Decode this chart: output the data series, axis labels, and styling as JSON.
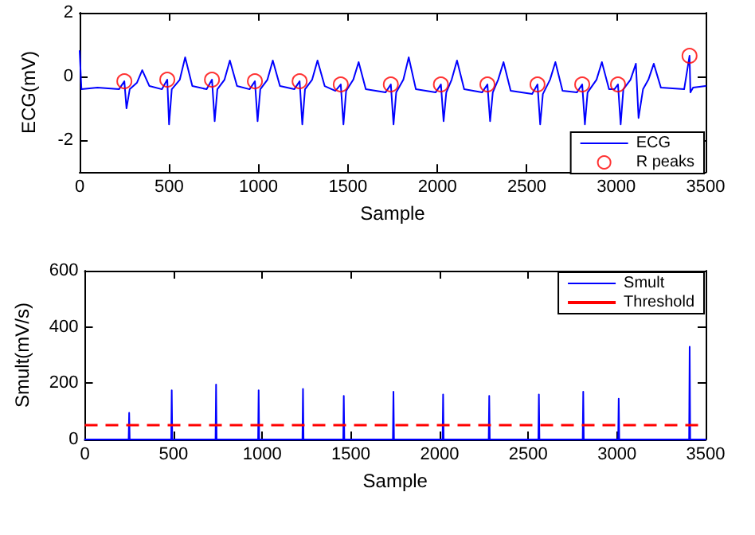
{
  "chart_data": [
    {
      "type": "line",
      "xlabel": "Sample",
      "ylabel": "ECG(mV)",
      "xlim": [
        0,
        3500
      ],
      "xticks": [
        0,
        500,
        1000,
        1500,
        2000,
        2500,
        3000,
        3500
      ],
      "ylim": [
        -3,
        2
      ],
      "yticks": [
        -2,
        0,
        2
      ],
      "grid": false,
      "legend": "bottom right",
      "series": [
        {
          "name": "ECG",
          "color": "#0000ff",
          "marker": "none",
          "line_style": "solid",
          "x": [
            0,
            10,
            100,
            220,
            250,
            262,
            280,
            320,
            350,
            390,
            460,
            490,
            500,
            515,
            560,
            590,
            630,
            710,
            740,
            755,
            770,
            810,
            840,
            880,
            950,
            980,
            995,
            1010,
            1050,
            1080,
            1120,
            1200,
            1230,
            1245,
            1260,
            1300,
            1330,
            1370,
            1430,
            1460,
            1475,
            1490,
            1530,
            1560,
            1600,
            1710,
            1740,
            1755,
            1770,
            1810,
            1840,
            1880,
            1990,
            2020,
            2035,
            2050,
            2080,
            2110,
            2150,
            2250,
            2280,
            2295,
            2310,
            2340,
            2370,
            2410,
            2530,
            2560,
            2575,
            2590,
            2630,
            2660,
            2700,
            2780,
            2810,
            2825,
            2840,
            2890,
            2920,
            2960,
            2990,
            3010,
            3025,
            3040,
            3080,
            3110,
            3125,
            3150,
            3180,
            3210,
            3250,
            3380,
            3410,
            3415,
            3430,
            3500
          ],
          "values": [
            0.8,
            -0.4,
            -0.35,
            -0.4,
            -0.15,
            -1.0,
            -0.4,
            -0.2,
            0.2,
            -0.3,
            -0.4,
            -0.1,
            -1.5,
            -0.4,
            -0.1,
            0.6,
            -0.3,
            -0.4,
            -0.1,
            -1.4,
            -0.4,
            -0.1,
            0.5,
            -0.3,
            -0.4,
            -0.15,
            -1.4,
            -0.4,
            -0.1,
            0.5,
            -0.3,
            -0.4,
            -0.15,
            -1.5,
            -0.4,
            -0.1,
            0.5,
            -0.3,
            -0.45,
            -0.25,
            -1.5,
            -0.45,
            -0.1,
            0.45,
            -0.4,
            -0.5,
            -0.25,
            -1.5,
            -0.5,
            -0.1,
            0.6,
            -0.4,
            -0.5,
            -0.25,
            -1.4,
            -0.5,
            -0.1,
            0.5,
            -0.4,
            -0.5,
            -0.25,
            -1.4,
            -0.5,
            -0.1,
            0.45,
            -0.45,
            -0.55,
            -0.25,
            -1.5,
            -0.55,
            -0.1,
            0.45,
            -0.45,
            -0.5,
            -0.25,
            -1.5,
            -0.5,
            -0.1,
            0.45,
            -0.4,
            -0.4,
            -0.25,
            -1.5,
            -0.4,
            -0.1,
            0.4,
            -1.3,
            -0.4,
            -0.1,
            0.4,
            -0.35,
            -0.4,
            0.65,
            -0.5,
            -0.35,
            -0.3
          ]
        },
        {
          "name": "R peaks",
          "type": "scatter",
          "color": "#ff0000",
          "marker": "circle",
          "x": [
            250,
            490,
            740,
            980,
            1230,
            1460,
            1740,
            2020,
            2280,
            2560,
            2810,
            3010,
            3410
          ],
          "values": [
            -0.15,
            -0.1,
            -0.1,
            -0.15,
            -0.15,
            -0.25,
            -0.25,
            -0.25,
            -0.25,
            -0.25,
            -0.25,
            -0.25,
            0.65
          ]
        }
      ]
    },
    {
      "type": "line",
      "xlabel": "Sample",
      "ylabel": "Smult(mV/s)",
      "xlim": [
        0,
        3500
      ],
      "xticks": [
        0,
        500,
        1000,
        1500,
        2000,
        2500,
        3000,
        3500
      ],
      "ylim": [
        0,
        600
      ],
      "yticks": [
        0,
        200,
        400,
        600
      ],
      "grid": false,
      "legend": "top right",
      "series": [
        {
          "name": "Smult",
          "color": "#0000ff",
          "marker": "none",
          "line_style": "solid",
          "x": [
            0,
            247,
            250,
            253,
            487,
            490,
            493,
            737,
            740,
            743,
            977,
            980,
            983,
            1227,
            1230,
            1233,
            1457,
            1460,
            1463,
            1737,
            1740,
            1743,
            2017,
            2020,
            2023,
            2277,
            2280,
            2283,
            2557,
            2560,
            2563,
            2807,
            2810,
            2813,
            3007,
            3010,
            3013,
            3407,
            3410,
            3413,
            3500
          ],
          "values": [
            0,
            0,
            95,
            0,
            0,
            175,
            0,
            0,
            195,
            0,
            0,
            175,
            0,
            0,
            180,
            0,
            0,
            155,
            0,
            0,
            170,
            0,
            0,
            160,
            0,
            0,
            155,
            0,
            0,
            160,
            0,
            0,
            170,
            0,
            0,
            145,
            0,
            0,
            330,
            0,
            0
          ]
        }
      ],
      "ref_lines": [
        {
          "axis": "y",
          "value": 50,
          "label": "Threshold",
          "color": "#ff0000",
          "line_style": "dashed"
        }
      ]
    }
  ]
}
